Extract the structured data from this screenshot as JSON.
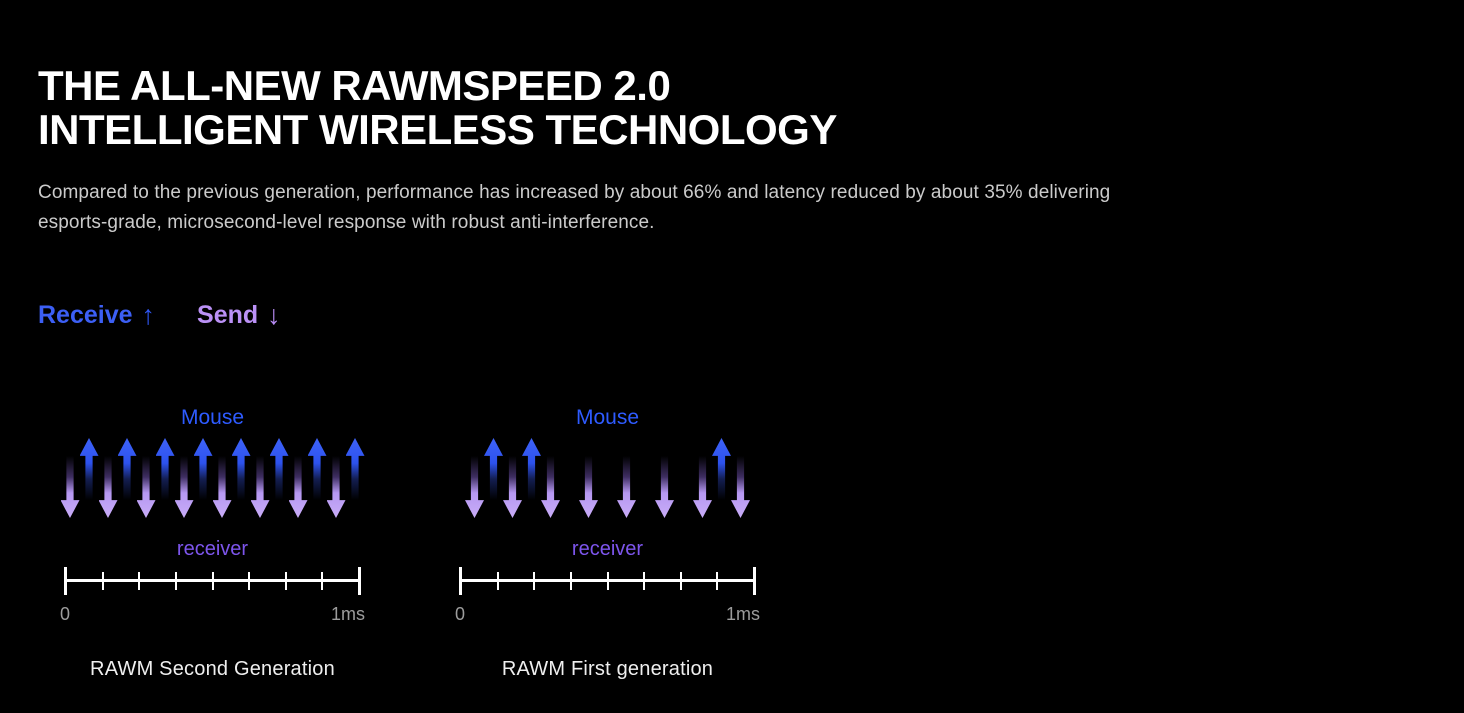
{
  "header": {
    "title_line1": "THE ALL-NEW RAWMSPEED 2.0",
    "title_line2": "INTELLIGENT WIRELESS TECHNOLOGY",
    "description": "Compared to the previous generation, performance has increased by about 66% and latency reduced by about 35% delivering esports-grade, microsecond-level response with robust anti-interference."
  },
  "legend": {
    "receive_label": "Receive",
    "receive_arrow": "↑",
    "send_label": "Send",
    "send_arrow": "↓"
  },
  "colors": {
    "background": "#000000",
    "title": "#ffffff",
    "description_gray": "#cbcbcb",
    "receive_blue": "#3c5ff5",
    "send_purple": "#bb91f6",
    "mouse_label_blue": "#2e5bff",
    "receiver_label_purple": "#7d55ec",
    "up_arrow_blue": "#2e55f0",
    "down_arrow_purple": "#c9adf8",
    "ruler_white": "#ffffff",
    "scale_label_gray": "#9c9c9c",
    "caption_white": "#efefef"
  },
  "diagrams": [
    {
      "top_label": "Mouse",
      "bottom_label": "receiver",
      "scale_start": "0",
      "scale_end": "1ms",
      "ruler_ticks": 9,
      "caption": "RAWM Second Generation",
      "arrows": [
        "down",
        "up",
        "down",
        "up",
        "down",
        "up",
        "down",
        "up",
        "down",
        "up",
        "down",
        "up",
        "down",
        "up",
        "down",
        "up"
      ]
    },
    {
      "top_label": "Mouse",
      "bottom_label": "receiver",
      "scale_start": "0",
      "scale_end": "1ms",
      "ruler_ticks": 9,
      "caption": "RAWM First generation",
      "arrows": [
        "down",
        "up",
        "down",
        "up",
        "down",
        "gap-down",
        "gap-down",
        "gap-down",
        "gap-down",
        "up",
        "down"
      ]
    }
  ]
}
